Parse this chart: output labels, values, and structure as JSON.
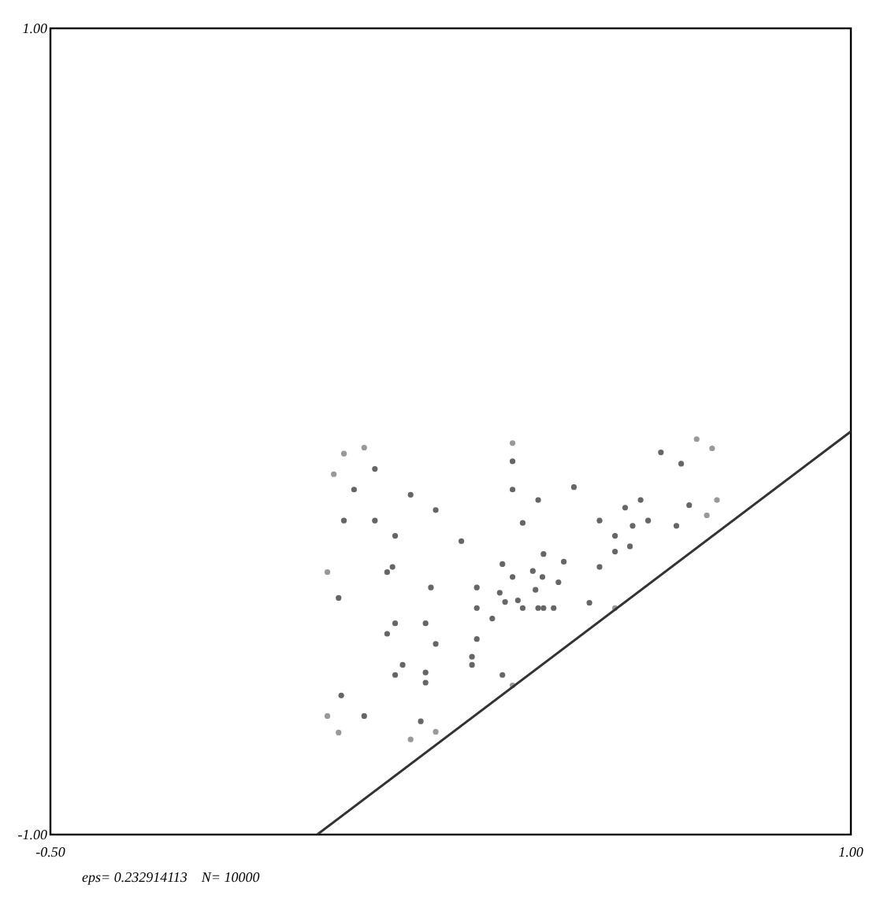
{
  "chart_data": {
    "type": "line",
    "xlim": [
      -0.5,
      1
    ],
    "ylim": [
      -1,
      1
    ],
    "xticks": [
      {
        "value": -0.5,
        "label": "-0.50"
      },
      {
        "value": 1,
        "label": "1.00"
      }
    ],
    "yticks": [
      {
        "value": -1,
        "label": "-1.00"
      },
      {
        "value": 1,
        "label": "1.00"
      }
    ],
    "grid": false,
    "line_style": "solid",
    "annotations": [
      "eps= 0.232914113    N= 10000"
    ],
    "series": [
      {
        "type": "scatter",
        "marker": "circle",
        "color": "#999999",
        "x": [
          0.031,
          0.05,
          0.088,
          0.366,
          0.711,
          0.74,
          0.749,
          0.73,
          0.558,
          0.366,
          0.222,
          0.175,
          0.04,
          0.019,
          0.019
        ],
        "values": [
          -0.106,
          -0.055,
          -0.04,
          -0.029,
          -0.019,
          -0.042,
          -0.17,
          -0.208,
          -0.438,
          -0.63,
          -0.745,
          -0.764,
          -0.747,
          -0.706,
          -0.349
        ]
      },
      {
        "type": "scatter",
        "marker": "circle",
        "color": "#666666",
        "x": [
          0.069,
          0.108,
          0.366,
          0.644,
          0.682,
          0.697,
          0.673,
          0.51,
          0.347,
          0.194,
          0.088,
          0.045,
          0.04,
          0.05
        ],
        "values": [
          -0.144,
          -0.093,
          -0.074,
          -0.052,
          -0.08,
          -0.183,
          -0.234,
          -0.425,
          -0.604,
          -0.719,
          -0.706,
          -0.655,
          -0.413,
          -0.221
        ]
      },
      {
        "type": "scatter",
        "marker": "circle",
        "color": "#666666",
        "x": [
          0.108,
          0.175,
          0.366,
          0.481,
          0.606,
          0.62,
          0.586,
          0.443,
          0.29,
          0.203,
          0.146,
          0.131,
          0.131
        ],
        "values": [
          -0.221,
          -0.157,
          -0.144,
          -0.138,
          -0.17,
          -0.221,
          -0.285,
          -0.438,
          -0.579,
          -0.623,
          -0.604,
          -0.502,
          -0.349
        ]
      },
      {
        "type": "scatter",
        "marker": "circle",
        "color": "#666666",
        "x": [
          0.146,
          0.222,
          0.414,
          0.577,
          0.591,
          0.558,
          0.424,
          0.29,
          0.203,
          0.16,
          0.146,
          0.141
        ],
        "values": [
          -0.259,
          -0.195,
          -0.17,
          -0.189,
          -0.234,
          -0.298,
          -0.438,
          -0.559,
          -0.598,
          -0.579,
          -0.476,
          -0.336
        ]
      },
      {
        "type": "scatter",
        "marker": "circle",
        "color": "#666666",
        "x": [
          0.213,
          0.27,
          0.385,
          0.529,
          0.558,
          0.529,
          0.414,
          0.299,
          0.222,
          0.203
        ],
        "values": [
          -0.387,
          -0.272,
          -0.227,
          -0.221,
          -0.259,
          -0.336,
          -0.438,
          -0.515,
          -0.527,
          -0.476
        ]
      },
      {
        "type": "scatter",
        "marker": "circle",
        "color": "#666666",
        "x": [
          0.299,
          0.347,
          0.424,
          0.462,
          0.452,
          0.385,
          0.328,
          0.299
        ],
        "values": [
          -0.387,
          -0.329,
          -0.304,
          -0.323,
          -0.374,
          -0.438,
          -0.464,
          -0.438
        ]
      },
      {
        "type": "scatter",
        "marker": "circle",
        "color": "#666666",
        "x": [
          0.342,
          0.366,
          0.404,
          0.422,
          0.409,
          0.376,
          0.352
        ],
        "values": [
          -0.4,
          -0.361,
          -0.346,
          -0.361,
          -0.393,
          -0.419,
          -0.423
        ]
      },
      {
        "color": "#333333",
        "x": [
          0,
          1
        ],
        "values": [
          -1,
          0
        ]
      }
    ]
  }
}
